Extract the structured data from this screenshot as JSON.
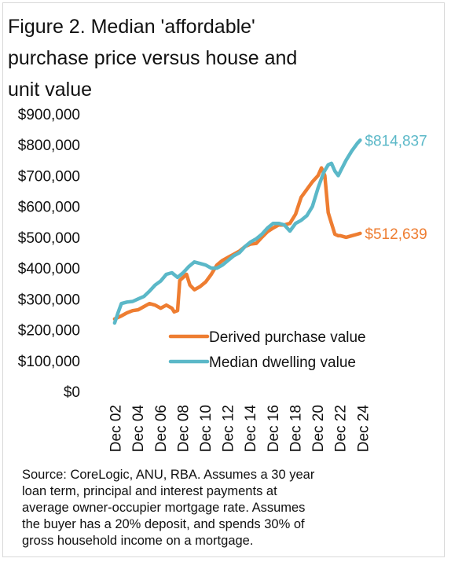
{
  "title_lines": [
    "Figure 2. Median 'affordable'",
    "purchase price versus house and",
    "unit value"
  ],
  "source_lines": [
    "Source: CoreLogic, ANU, RBA. Assumes a 30 year",
    "loan term, principal and interest payments at",
    "average owner-occupier mortgage rate. Assumes",
    "the buyer has a 20% deposit, and spends 30% of",
    "gross household income on a mortgage."
  ],
  "colors": {
    "purchase": "#ee7d31",
    "dwelling": "#5bb8c8"
  },
  "chart_data": {
    "type": "line",
    "x_unit": "year",
    "xlim": [
      2002.0,
      2025.0
    ],
    "ylim": [
      0,
      900000
    ],
    "y_ticks": [
      {
        "value": 0,
        "label": "$0"
      },
      {
        "value": 100000,
        "label": "$100,000"
      },
      {
        "value": 200000,
        "label": "$200,000"
      },
      {
        "value": 300000,
        "label": "$300,000"
      },
      {
        "value": 400000,
        "label": "$400,000"
      },
      {
        "value": 500000,
        "label": "$500,000"
      },
      {
        "value": 600000,
        "label": "$600,000"
      },
      {
        "value": 700000,
        "label": "$700,000"
      },
      {
        "value": 800000,
        "label": "$800,000"
      },
      {
        "value": 900000,
        "label": "$900,000"
      }
    ],
    "x_ticks": [
      {
        "value": 2002.95,
        "label": "Dec 02"
      },
      {
        "value": 2004.95,
        "label": "Dec 04"
      },
      {
        "value": 2006.95,
        "label": "Dec 06"
      },
      {
        "value": 2008.95,
        "label": "Dec 08"
      },
      {
        "value": 2010.95,
        "label": "Dec 10"
      },
      {
        "value": 2012.95,
        "label": "Dec 12"
      },
      {
        "value": 2014.95,
        "label": "Dec 14"
      },
      {
        "value": 2016.95,
        "label": "Dec 16"
      },
      {
        "value": 2018.95,
        "label": "Dec 18"
      },
      {
        "value": 2020.95,
        "label": "Dec 20"
      },
      {
        "value": 2022.95,
        "label": "Dec 22"
      },
      {
        "value": 2024.95,
        "label": "Dec 24"
      }
    ],
    "grid": false,
    "legend_position": "lower-right",
    "series": [
      {
        "key": "purchase",
        "name": "Derived purchase value",
        "end_label": "$512,639",
        "x": [
          2002.9,
          2003.5,
          2004.0,
          2004.5,
          2005.0,
          2005.5,
          2006.0,
          2006.5,
          2007.0,
          2007.5,
          2008.0,
          2008.2,
          2008.5,
          2008.7,
          2009.0,
          2009.3,
          2009.6,
          2010.0,
          2010.5,
          2011.0,
          2011.5,
          2012.0,
          2012.5,
          2013.0,
          2013.5,
          2014.0,
          2014.5,
          2015.0,
          2015.5,
          2016.0,
          2016.5,
          2017.0,
          2017.5,
          2018.0,
          2018.5,
          2019.0,
          2019.5,
          2020.0,
          2020.5,
          2021.0,
          2021.3,
          2021.6,
          2021.9,
          2022.2,
          2022.5,
          2022.8,
          2023.0,
          2023.5,
          2024.0,
          2024.5,
          2024.75
        ],
        "y": [
          235000,
          245000,
          255000,
          262000,
          265000,
          275000,
          285000,
          280000,
          270000,
          280000,
          270000,
          258000,
          262000,
          360000,
          370000,
          380000,
          345000,
          330000,
          340000,
          355000,
          380000,
          410000,
          425000,
          435000,
          445000,
          455000,
          470000,
          478000,
          480000,
          500000,
          518000,
          530000,
          540000,
          540000,
          545000,
          575000,
          630000,
          655000,
          680000,
          700000,
          725000,
          700000,
          580000,
          545000,
          510000,
          505000,
          505000,
          500000,
          505000,
          510000,
          512639
        ]
      },
      {
        "key": "dwelling",
        "name": "Median dwelling value",
        "end_label": "$814,837",
        "x": [
          2002.9,
          2003.2,
          2003.5,
          2004.0,
          2004.5,
          2005.0,
          2005.5,
          2006.0,
          2006.5,
          2007.0,
          2007.5,
          2008.0,
          2008.5,
          2009.0,
          2009.5,
          2010.0,
          2010.5,
          2011.0,
          2011.5,
          2012.0,
          2012.5,
          2013.0,
          2013.5,
          2014.0,
          2014.5,
          2015.0,
          2015.5,
          2016.0,
          2016.5,
          2017.0,
          2017.5,
          2018.0,
          2018.5,
          2019.0,
          2019.5,
          2020.0,
          2020.5,
          2021.0,
          2021.5,
          2021.9,
          2022.2,
          2022.5,
          2022.8,
          2023.0,
          2023.5,
          2024.0,
          2024.5,
          2024.75
        ],
        "y": [
          222000,
          255000,
          285000,
          290000,
          292000,
          300000,
          308000,
          325000,
          345000,
          358000,
          380000,
          385000,
          370000,
          385000,
          405000,
          420000,
          415000,
          410000,
          400000,
          400000,
          410000,
          425000,
          440000,
          450000,
          470000,
          485000,
          495000,
          510000,
          530000,
          545000,
          545000,
          540000,
          520000,
          545000,
          555000,
          570000,
          600000,
          660000,
          710000,
          735000,
          740000,
          715000,
          700000,
          715000,
          750000,
          780000,
          805000,
          814837
        ]
      }
    ]
  }
}
